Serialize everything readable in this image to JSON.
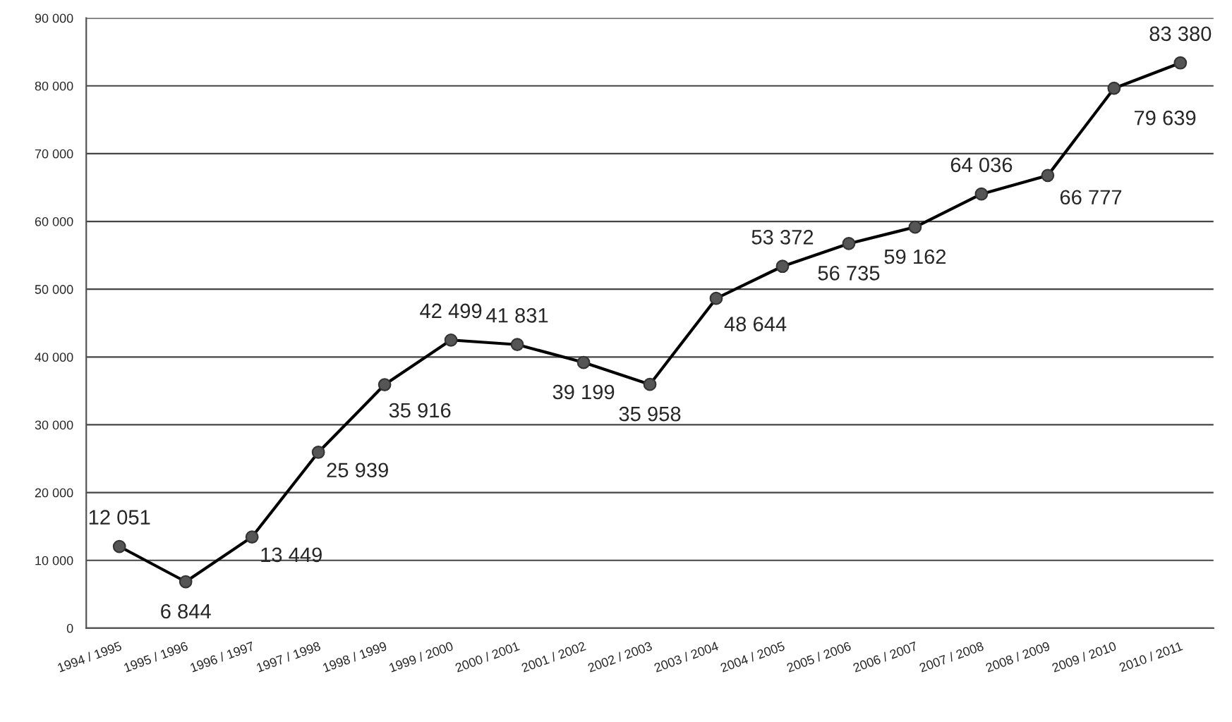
{
  "chart_data": {
    "type": "line",
    "categories": [
      "1994 / 1995",
      "1995 / 1996",
      "1996 / 1997",
      "1997 / 1998",
      "1998 / 1999",
      "1999 / 2000",
      "2000 / 2001",
      "2001 / 2002",
      "2002 / 2003",
      "2003 / 2004",
      "2004 / 2005",
      "2005 / 2006",
      "2006 / 2007",
      "2007 / 2008",
      "2008 / 2009",
      "2009 / 2010",
      "2010 / 2011"
    ],
    "series": [
      {
        "color": "#000000",
        "values": [
          12051,
          6844,
          13449,
          25939,
          35916,
          42499,
          41831,
          39199,
          35958,
          48644,
          53372,
          56735,
          59162,
          64036,
          66777,
          79639,
          83380
        ],
        "value_labels": [
          "12 051",
          "6 844",
          "13 449",
          "25 939",
          "35 916",
          "42 499",
          "41 831",
          "39 199",
          "35 958",
          "48 644",
          "53 372",
          "56 735",
          "59 162",
          "64 036",
          "66 777",
          "79 639",
          "83 380"
        ]
      }
    ],
    "ylim": [
      0,
      90000
    ],
    "yticks": [
      0,
      {
        "value": 10000,
        "label": "10 000"
      },
      {
        "value": 20000,
        "label": "20 000"
      },
      {
        "value": 30000,
        "label": "30 000"
      },
      {
        "value": 40000,
        "label": "40 000"
      },
      {
        "value": 50000,
        "label": "50 000"
      },
      {
        "value": 60000,
        "label": "60 000"
      },
      {
        "value": 70000,
        "label": "70 000"
      },
      {
        "value": 80000,
        "label": "80 000"
      },
      {
        "value": 90000,
        "label": "90 000"
      }
    ],
    "grid": "y",
    "marker": "circle",
    "line_style": "solid",
    "legend": false
  }
}
